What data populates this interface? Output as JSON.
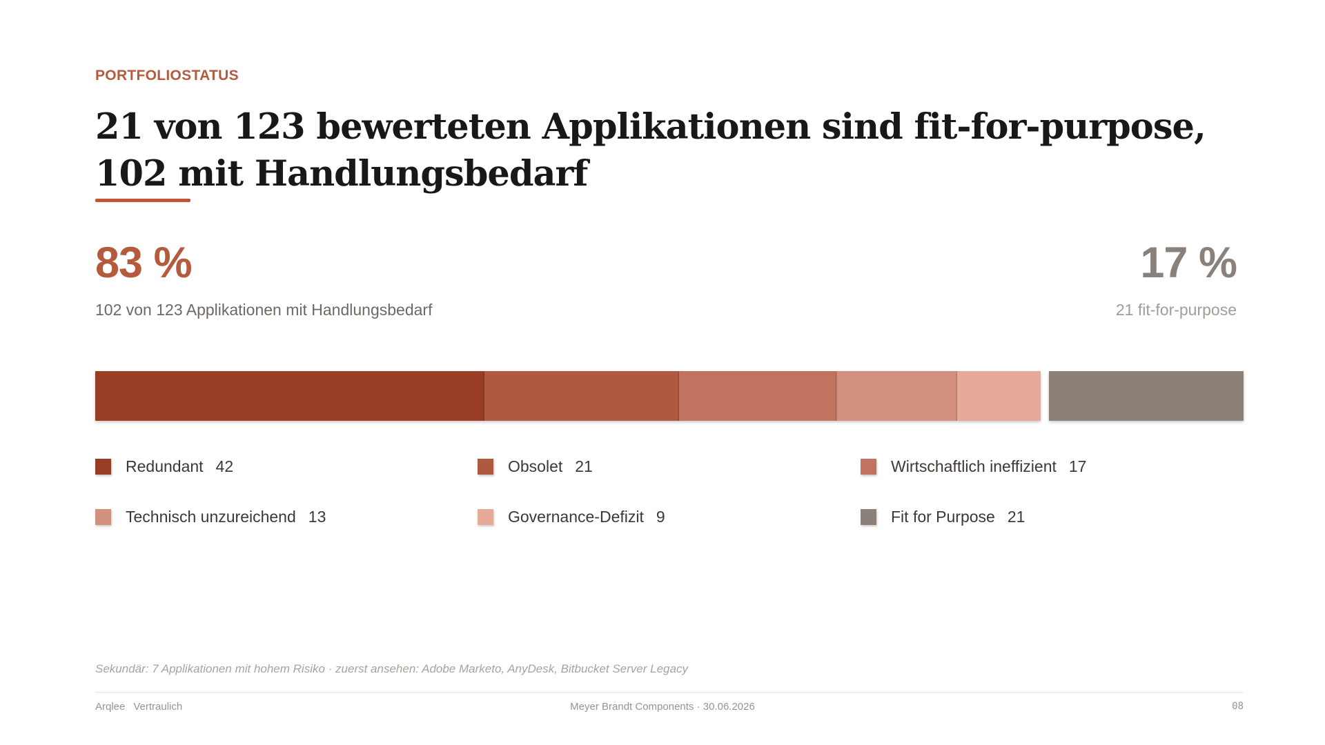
{
  "eyebrow": "PORTFOLIOSTATUS",
  "headline": "21 von 123 bewerteten Applikationen sind fit-for-purpose, 102 mit Handlungsbedarf",
  "kpi": {
    "left_value": "83 %",
    "left_label": "102 von 123 Applikationen mit Handlungsbedarf",
    "right_value": "17 %",
    "right_label": "21 fit-for-purpose"
  },
  "colors": {
    "accent": "#b55a3c",
    "neutral": "#8b8179"
  },
  "chart_data": {
    "type": "bar",
    "orientation": "horizontal-stacked",
    "total": 123,
    "categories": [
      "Redundant",
      "Obsolet",
      "Wirtschaftlich ineffizient",
      "Technisch unzureichend",
      "Governance-Defizit",
      "Fit for Purpose"
    ],
    "values": [
      42,
      21,
      17,
      13,
      9,
      21
    ],
    "colors": [
      "#993c26",
      "#af5942",
      "#c2735f",
      "#d2917e",
      "#e5ab98",
      "#8b8179"
    ],
    "groups": [
      {
        "name": "Handlungsbedarf",
        "members": [
          "Redundant",
          "Obsolet",
          "Wirtschaftlich ineffizient",
          "Technisch unzureichend",
          "Governance-Defizit"
        ]
      },
      {
        "name": "fit-for-purpose",
        "members": [
          "Fit for Purpose"
        ]
      }
    ],
    "legend_placement": "bottom",
    "grid": false
  },
  "footnote": "Sekundär: 7 Applikationen mit hohem Risiko · zuerst ansehen: Adobe Marketo, AnyDesk, Bitbucket Server Legacy",
  "footer": {
    "brand": "Arqlee",
    "classification": "Vertraulich",
    "center": "Meyer Brandt Components · 30.06.2026",
    "page": "08"
  }
}
